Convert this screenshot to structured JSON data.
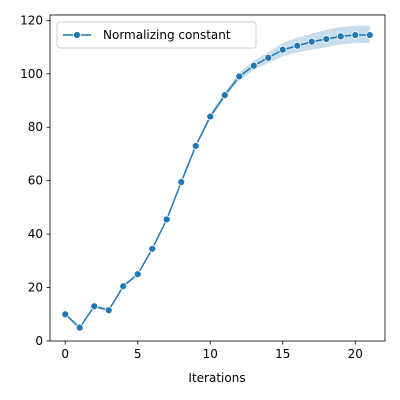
{
  "chart_data": {
    "type": "line",
    "title": "",
    "xlabel": "Iterations",
    "ylabel": "",
    "xlim": [
      -1.05,
      22.05
    ],
    "ylim": [
      0,
      122
    ],
    "xticks": [
      0,
      5,
      10,
      15,
      20
    ],
    "yticks": [
      0,
      20,
      40,
      60,
      80,
      100,
      120
    ],
    "grid": false,
    "legend": {
      "position": "top-left"
    },
    "series": [
      {
        "name": "Normalizing constant",
        "color": "#1f77b4",
        "marker": "circle",
        "x": [
          0,
          1,
          2,
          3,
          4,
          5,
          6,
          7,
          8,
          9,
          10,
          11,
          12,
          13,
          14,
          15,
          16,
          17,
          18,
          19,
          20,
          21
        ],
        "y": [
          10,
          5,
          13,
          11.5,
          20.5,
          25,
          34.5,
          45.5,
          59.5,
          73,
          84,
          92,
          99,
          103,
          106,
          109,
          110.5,
          112,
          113,
          114,
          114.5,
          114.5
        ],
        "band_lower": [
          9.5,
          4.5,
          12.5,
          11,
          20,
          24.5,
          34,
          45,
          59,
          72.5,
          83,
          91,
          97.5,
          101.5,
          104,
          106.5,
          108,
          109,
          110,
          111,
          111.5,
          111.5
        ],
        "band_upper": [
          10.5,
          5.5,
          13.5,
          12,
          21,
          25.5,
          35,
          46,
          60,
          73.5,
          85,
          93,
          100.5,
          105,
          108,
          111.5,
          113.5,
          115,
          116.5,
          117.5,
          118,
          118
        ]
      }
    ]
  }
}
